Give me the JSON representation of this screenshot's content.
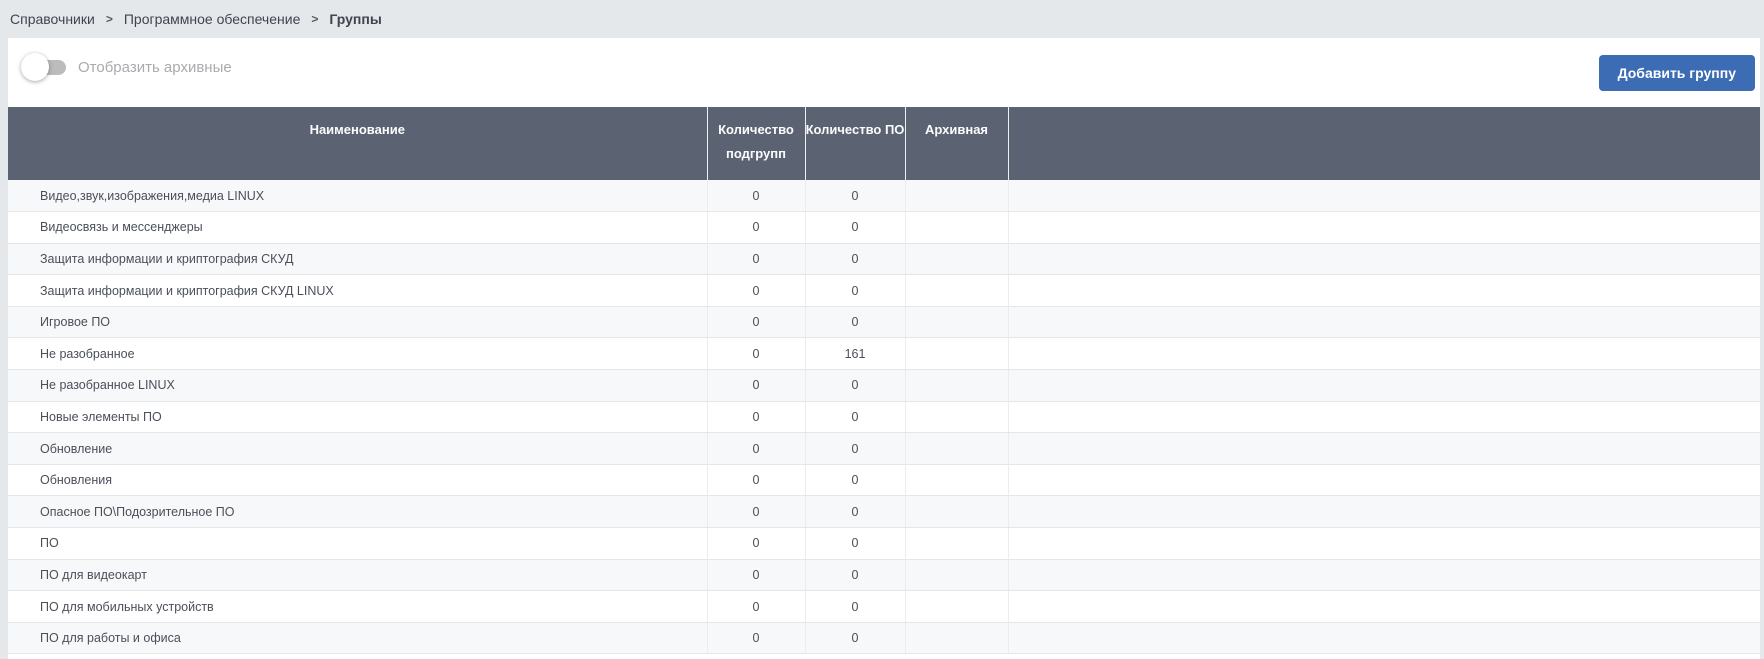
{
  "breadcrumb": {
    "items": [
      "Справочники",
      "Программное обеспечение",
      "Группы"
    ],
    "separator": ">"
  },
  "toolbar": {
    "toggle_label": "Отобразить архивные",
    "toggle_state": "off",
    "add_button_label": "Добавить группу"
  },
  "table": {
    "columns": [
      "Наименование",
      "Количество подгрупп",
      "Количество ПО",
      "Архивная",
      ""
    ],
    "rows": [
      {
        "name": "Видео,звук,изображения,медиа LINUX",
        "subgroups": "0",
        "software": "0",
        "archived": ""
      },
      {
        "name": "Видеосвязь и мессенджеры",
        "subgroups": "0",
        "software": "0",
        "archived": ""
      },
      {
        "name": "Защита информации и криптография СКУД",
        "subgroups": "0",
        "software": "0",
        "archived": ""
      },
      {
        "name": "Защита информации и криптография СКУД LINUX",
        "subgroups": "0",
        "software": "0",
        "archived": ""
      },
      {
        "name": "Игровое ПО",
        "subgroups": "0",
        "software": "0",
        "archived": ""
      },
      {
        "name": "Не разобранное",
        "subgroups": "0",
        "software": "161",
        "archived": ""
      },
      {
        "name": "Не разобранное LINUX",
        "subgroups": "0",
        "software": "0",
        "archived": ""
      },
      {
        "name": "Новые элементы ПО",
        "subgroups": "0",
        "software": "0",
        "archived": ""
      },
      {
        "name": "Обновление",
        "subgroups": "0",
        "software": "0",
        "archived": ""
      },
      {
        "name": "Обновления",
        "subgroups": "0",
        "software": "0",
        "archived": ""
      },
      {
        "name": "Опасное ПО\\Подозрительное ПО",
        "subgroups": "0",
        "software": "0",
        "archived": ""
      },
      {
        "name": "ПО",
        "subgroups": "0",
        "software": "0",
        "archived": ""
      },
      {
        "name": "ПО для видеокарт",
        "subgroups": "0",
        "software": "0",
        "archived": ""
      },
      {
        "name": "ПО для мобильных устройств",
        "subgroups": "0",
        "software": "0",
        "archived": ""
      },
      {
        "name": "ПО для работы и офиса",
        "subgroups": "0",
        "software": "0",
        "archived": ""
      }
    ]
  },
  "colors": {
    "accent_button": "#3c6cb4",
    "table_header_bg": "#5b6271",
    "page_bg": "#e5e8eb",
    "row_alt_bg": "#f7f8fa"
  }
}
